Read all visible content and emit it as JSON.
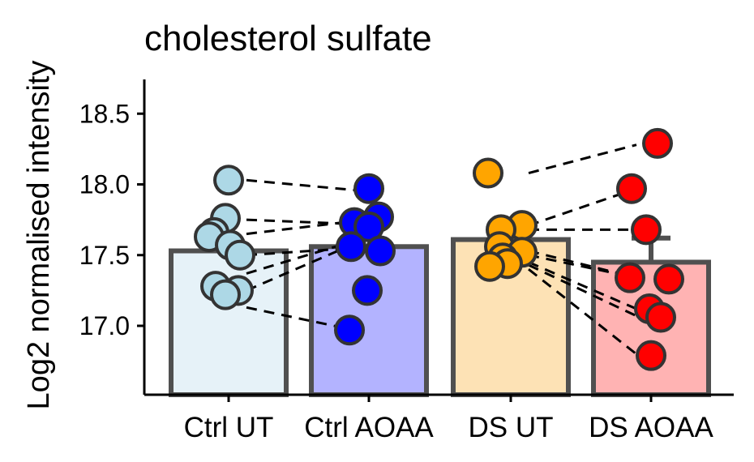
{
  "chart_data": {
    "type": "bar",
    "title": "cholesterol sulfate",
    "ylabel": "Log2 normalised intensity",
    "xlabel": "",
    "ylim": [
      16.5,
      18.75
    ],
    "yticks": [
      "17.0",
      "17.5",
      "18.0",
      "18.5"
    ],
    "categories": [
      "Ctrl UT",
      "Ctrl AOAA",
      "DS UT",
      "DS AOAA"
    ],
    "values": [
      17.53,
      17.56,
      17.61,
      17.45
    ],
    "error_upper": [
      null,
      null,
      null,
      17.62
    ],
    "fill_colors": [
      "#e6f2f8",
      "#b3b3ff",
      "#fde2b5",
      "#ffb3b3"
    ],
    "point_colors": [
      "#add8e6",
      "#0000ff",
      "#ffa500",
      "#ff0000"
    ],
    "points": [
      [
        18.03,
        17.76,
        17.66,
        17.63,
        17.57,
        17.5,
        17.28,
        17.25,
        17.22
      ],
      [
        17.97,
        17.77,
        17.73,
        17.7,
        17.56,
        17.53,
        17.25,
        16.97
      ],
      [
        18.08,
        17.71,
        17.68,
        17.56,
        17.52,
        17.48,
        17.44,
        17.42
      ],
      [
        18.29,
        17.97,
        17.68,
        17.34,
        17.33,
        17.12,
        17.06,
        16.79
      ]
    ],
    "paired_lines": [
      [
        [
          0,
          18.03
        ],
        [
          1,
          17.96
        ]
      ],
      [
        [
          0,
          17.75
        ],
        [
          1,
          17.72
        ]
      ],
      [
        [
          0,
          17.65
        ],
        [
          1,
          17.74
        ]
      ],
      [
        [
          0,
          17.5
        ],
        [
          1,
          17.55
        ]
      ],
      [
        [
          0,
          17.37
        ],
        [
          1,
          17.6
        ]
      ],
      [
        [
          0,
          17.25
        ],
        [
          1,
          17.58
        ]
      ],
      [
        [
          0,
          17.13
        ],
        [
          1,
          16.97
        ]
      ],
      [
        [
          2,
          18.08
        ],
        [
          3,
          18.28
        ]
      ],
      [
        [
          2,
          17.71
        ],
        [
          3,
          17.97
        ]
      ],
      [
        [
          2,
          17.68
        ],
        [
          3,
          17.68
        ]
      ],
      [
        [
          2,
          17.53
        ],
        [
          3,
          17.34
        ]
      ],
      [
        [
          2,
          17.5
        ],
        [
          3,
          17.34
        ]
      ],
      [
        [
          2,
          17.45
        ],
        [
          3,
          17.12
        ]
      ],
      [
        [
          2,
          17.43
        ],
        [
          3,
          17.07
        ]
      ],
      [
        [
          2,
          17.4
        ],
        [
          3,
          16.8
        ]
      ]
    ]
  }
}
